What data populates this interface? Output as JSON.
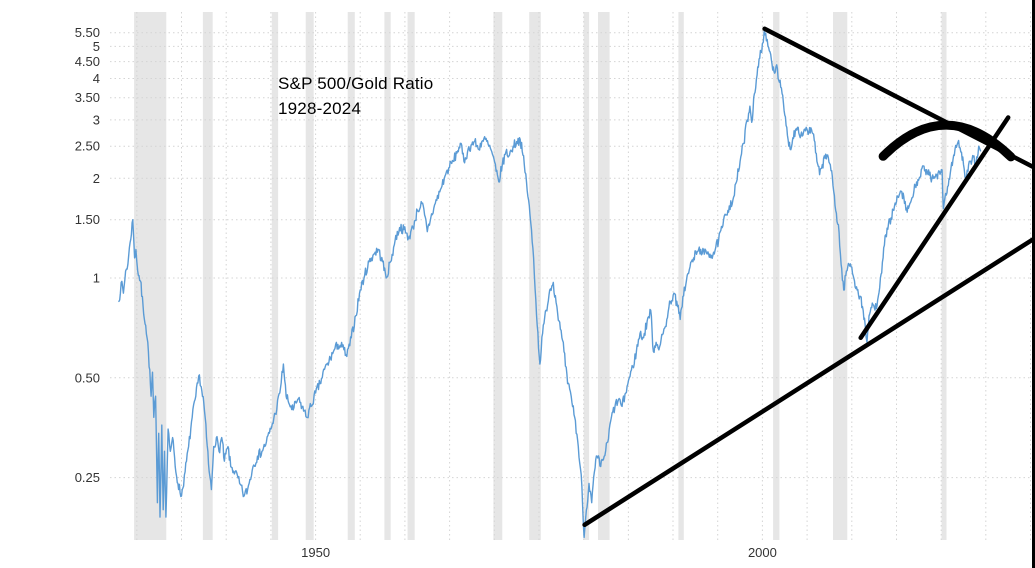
{
  "chart_data": {
    "type": "line",
    "title": "S&P 500/Gold Ratio",
    "subtitle": "1928-2024",
    "xlabel": "",
    "ylabel": "",
    "y_scale": "log",
    "grid": true,
    "legend": "none",
    "x_range": [
      1927,
      2030.5
    ],
    "y_range": [
      0.162,
      6.35
    ],
    "x_ticks": [
      1950,
      2000
    ],
    "x_tick_labels": [
      "1950",
      "2000"
    ],
    "y_ticks": [
      5.5,
      5,
      4.5,
      4,
      3.5,
      3,
      2.5,
      2,
      1.5,
      1,
      0.5,
      0.25
    ],
    "y_tick_labels": [
      "5.50",
      "5",
      "4.50",
      "4",
      "3.50",
      "3",
      "2.50",
      "2",
      "1.50",
      "1",
      "0.50",
      "0.25"
    ],
    "x_grid_start": 1930,
    "x_grid_end": 2030,
    "x_grid_interval": 5,
    "colors": {
      "line": "#5b9bd5",
      "annotation": "#000000",
      "recession_band": "#e3e3e3",
      "grid": "#d4d4d4",
      "tick_label": "#333333"
    },
    "recession_bands": [
      [
        1929.7,
        1933.3
      ],
      [
        1937.4,
        1938.5
      ],
      [
        1945.1,
        1945.8
      ],
      [
        1948.9,
        1949.8
      ],
      [
        1953.6,
        1954.4
      ],
      [
        1957.7,
        1958.4
      ],
      [
        1960.3,
        1961.1
      ],
      [
        1969.9,
        1970.9
      ],
      [
        1973.9,
        1975.2
      ],
      [
        1980.0,
        1980.6
      ],
      [
        1981.6,
        1982.9
      ],
      [
        1990.6,
        1991.2
      ],
      [
        2001.2,
        2001.9
      ],
      [
        2007.9,
        2009.5
      ],
      [
        2020.05,
        2020.6
      ]
    ],
    "series": [
      {
        "name": "S&P 500 / Gold ratio",
        "points": [
          [
            1928.0,
            0.85
          ],
          [
            1928.25,
            0.97
          ],
          [
            1928.5,
            0.9
          ],
          [
            1928.75,
            1.05
          ],
          [
            1929.0,
            1.1
          ],
          [
            1929.25,
            1.28
          ],
          [
            1929.55,
            1.5
          ],
          [
            1929.75,
            1.15
          ],
          [
            1929.9,
            1.22
          ],
          [
            1930.1,
            1.05
          ],
          [
            1930.4,
            0.98
          ],
          [
            1930.7,
            0.82
          ],
          [
            1931.0,
            0.72
          ],
          [
            1931.3,
            0.6
          ],
          [
            1931.6,
            0.44
          ],
          [
            1931.75,
            0.52
          ],
          [
            1931.9,
            0.38
          ],
          [
            1932.1,
            0.44
          ],
          [
            1932.3,
            0.21
          ],
          [
            1932.45,
            0.34
          ],
          [
            1932.6,
            0.19
          ],
          [
            1932.8,
            0.36
          ],
          [
            1932.95,
            0.2
          ],
          [
            1933.1,
            0.3
          ],
          [
            1933.25,
            0.19
          ],
          [
            1933.5,
            0.35
          ],
          [
            1933.75,
            0.3
          ],
          [
            1934.0,
            0.33
          ],
          [
            1934.3,
            0.27
          ],
          [
            1934.6,
            0.24
          ],
          [
            1935.0,
            0.22
          ],
          [
            1935.4,
            0.26
          ],
          [
            1935.8,
            0.31
          ],
          [
            1936.2,
            0.38
          ],
          [
            1936.6,
            0.44
          ],
          [
            1937.0,
            0.51
          ],
          [
            1937.2,
            0.47
          ],
          [
            1937.5,
            0.42
          ],
          [
            1937.8,
            0.33
          ],
          [
            1938.1,
            0.26
          ],
          [
            1938.35,
            0.23
          ],
          [
            1938.6,
            0.31
          ],
          [
            1938.9,
            0.33
          ],
          [
            1939.2,
            0.3
          ],
          [
            1939.5,
            0.33
          ],
          [
            1939.8,
            0.28
          ],
          [
            1940.2,
            0.31
          ],
          [
            1940.5,
            0.27
          ],
          [
            1941.0,
            0.26
          ],
          [
            1941.5,
            0.24
          ],
          [
            1942.0,
            0.22
          ],
          [
            1942.4,
            0.23
          ],
          [
            1943.0,
            0.27
          ],
          [
            1943.5,
            0.29
          ],
          [
            1944.0,
            0.3
          ],
          [
            1944.5,
            0.32
          ],
          [
            1945.0,
            0.35
          ],
          [
            1945.5,
            0.39
          ],
          [
            1946.0,
            0.45
          ],
          [
            1946.4,
            0.55
          ],
          [
            1946.7,
            0.44
          ],
          [
            1947.0,
            0.42
          ],
          [
            1947.5,
            0.4
          ],
          [
            1948.0,
            0.43
          ],
          [
            1948.5,
            0.41
          ],
          [
            1949.0,
            0.38
          ],
          [
            1949.5,
            0.41
          ],
          [
            1950.0,
            0.45
          ],
          [
            1950.5,
            0.48
          ],
          [
            1951.0,
            0.53
          ],
          [
            1951.5,
            0.56
          ],
          [
            1952.0,
            0.6
          ],
          [
            1952.5,
            0.63
          ],
          [
            1953.0,
            0.62
          ],
          [
            1953.5,
            0.58
          ],
          [
            1954.0,
            0.66
          ],
          [
            1954.5,
            0.77
          ],
          [
            1955.0,
            0.92
          ],
          [
            1955.5,
            1.02
          ],
          [
            1956.0,
            1.12
          ],
          [
            1956.5,
            1.18
          ],
          [
            1957.0,
            1.22
          ],
          [
            1957.5,
            1.12
          ],
          [
            1957.9,
            1.0
          ],
          [
            1958.4,
            1.12
          ],
          [
            1958.9,
            1.3
          ],
          [
            1959.4,
            1.42
          ],
          [
            1959.9,
            1.4
          ],
          [
            1960.4,
            1.32
          ],
          [
            1960.9,
            1.42
          ],
          [
            1961.4,
            1.6
          ],
          [
            1961.9,
            1.68
          ],
          [
            1962.2,
            1.55
          ],
          [
            1962.5,
            1.38
          ],
          [
            1962.9,
            1.52
          ],
          [
            1963.4,
            1.68
          ],
          [
            1963.9,
            1.82
          ],
          [
            1964.4,
            2.0
          ],
          [
            1964.9,
            2.15
          ],
          [
            1965.4,
            2.25
          ],
          [
            1965.9,
            2.42
          ],
          [
            1966.2,
            2.55
          ],
          [
            1966.6,
            2.25
          ],
          [
            1967.0,
            2.4
          ],
          [
            1967.4,
            2.52
          ],
          [
            1967.8,
            2.58
          ],
          [
            1968.2,
            2.45
          ],
          [
            1968.6,
            2.58
          ],
          [
            1969.0,
            2.62
          ],
          [
            1969.4,
            2.5
          ],
          [
            1969.8,
            2.36
          ],
          [
            1970.2,
            2.1
          ],
          [
            1970.5,
            1.95
          ],
          [
            1970.9,
            2.2
          ],
          [
            1971.3,
            2.4
          ],
          [
            1971.7,
            2.35
          ],
          [
            1972.1,
            2.5
          ],
          [
            1972.5,
            2.58
          ],
          [
            1972.9,
            2.62
          ],
          [
            1973.2,
            2.35
          ],
          [
            1973.6,
            1.95
          ],
          [
            1974.0,
            1.55
          ],
          [
            1974.4,
            1.15
          ],
          [
            1974.8,
            0.72
          ],
          [
            1975.1,
            0.55
          ],
          [
            1975.4,
            0.68
          ],
          [
            1975.8,
            0.8
          ],
          [
            1976.2,
            0.92
          ],
          [
            1976.6,
            0.97
          ],
          [
            1977.0,
            0.82
          ],
          [
            1977.4,
            0.7
          ],
          [
            1977.8,
            0.6
          ],
          [
            1978.2,
            0.48
          ],
          [
            1978.6,
            0.44
          ],
          [
            1979.0,
            0.38
          ],
          [
            1979.4,
            0.31
          ],
          [
            1979.8,
            0.235
          ],
          [
            1980.05,
            0.165
          ],
          [
            1980.3,
            0.2
          ],
          [
            1980.6,
            0.24
          ],
          [
            1980.9,
            0.21
          ],
          [
            1981.2,
            0.26
          ],
          [
            1981.5,
            0.29
          ],
          [
            1981.9,
            0.27
          ],
          [
            1982.3,
            0.29
          ],
          [
            1982.7,
            0.32
          ],
          [
            1983.1,
            0.38
          ],
          [
            1983.5,
            0.41
          ],
          [
            1983.9,
            0.43
          ],
          [
            1984.3,
            0.41
          ],
          [
            1984.7,
            0.45
          ],
          [
            1985.1,
            0.5
          ],
          [
            1985.5,
            0.54
          ],
          [
            1985.9,
            0.6
          ],
          [
            1986.3,
            0.68
          ],
          [
            1986.7,
            0.66
          ],
          [
            1987.1,
            0.74
          ],
          [
            1987.5,
            0.8
          ],
          [
            1987.8,
            0.6
          ],
          [
            1988.1,
            0.64
          ],
          [
            1988.5,
            0.62
          ],
          [
            1988.9,
            0.68
          ],
          [
            1989.3,
            0.75
          ],
          [
            1989.7,
            0.85
          ],
          [
            1990.1,
            0.9
          ],
          [
            1990.5,
            0.82
          ],
          [
            1990.8,
            0.75
          ],
          [
            1991.1,
            0.88
          ],
          [
            1991.5,
            0.98
          ],
          [
            1991.9,
            1.08
          ],
          [
            1992.3,
            1.15
          ],
          [
            1992.7,
            1.2
          ],
          [
            1993.1,
            1.22
          ],
          [
            1993.5,
            1.18
          ],
          [
            1993.9,
            1.2
          ],
          [
            1994.3,
            1.17
          ],
          [
            1994.7,
            1.21
          ],
          [
            1995.1,
            1.3
          ],
          [
            1995.5,
            1.42
          ],
          [
            1995.9,
            1.55
          ],
          [
            1996.3,
            1.65
          ],
          [
            1996.7,
            1.72
          ],
          [
            1997.1,
            1.95
          ],
          [
            1997.5,
            2.25
          ],
          [
            1997.9,
            2.55
          ],
          [
            1998.3,
            3.0
          ],
          [
            1998.6,
            3.3
          ],
          [
            1998.8,
            2.95
          ],
          [
            1999.1,
            3.6
          ],
          [
            1999.4,
            4.1
          ],
          [
            1999.7,
            4.6
          ],
          [
            2000.0,
            5.1
          ],
          [
            2000.2,
            5.55
          ],
          [
            2000.45,
            5.2
          ],
          [
            2000.7,
            4.95
          ],
          [
            2001.0,
            4.55
          ],
          [
            2001.3,
            4.2
          ],
          [
            2001.6,
            4.4
          ],
          [
            2001.9,
            3.9
          ],
          [
            2002.2,
            3.6
          ],
          [
            2002.5,
            3.1
          ],
          [
            2002.8,
            2.7
          ],
          [
            2003.1,
            2.45
          ],
          [
            2003.4,
            2.65
          ],
          [
            2003.7,
            2.8
          ],
          [
            2004.0,
            2.85
          ],
          [
            2004.3,
            2.7
          ],
          [
            2004.6,
            2.75
          ],
          [
            2004.9,
            2.85
          ],
          [
            2005.2,
            2.75
          ],
          [
            2005.5,
            2.8
          ],
          [
            2005.8,
            2.6
          ],
          [
            2006.1,
            2.25
          ],
          [
            2006.4,
            2.05
          ],
          [
            2006.7,
            2.2
          ],
          [
            2007.0,
            2.3
          ],
          [
            2007.3,
            2.35
          ],
          [
            2007.6,
            2.2
          ],
          [
            2007.9,
            1.9
          ],
          [
            2008.2,
            1.6
          ],
          [
            2008.5,
            1.45
          ],
          [
            2008.8,
            1.1
          ],
          [
            2009.1,
            0.92
          ],
          [
            2009.4,
            1.05
          ],
          [
            2009.7,
            1.1
          ],
          [
            2010.0,
            1.08
          ],
          [
            2010.3,
            0.98
          ],
          [
            2010.6,
            0.92
          ],
          [
            2010.9,
            0.88
          ],
          [
            2011.2,
            0.82
          ],
          [
            2011.5,
            0.72
          ],
          [
            2011.7,
            0.64
          ],
          [
            2012.0,
            0.78
          ],
          [
            2012.3,
            0.84
          ],
          [
            2012.6,
            0.8
          ],
          [
            2012.9,
            0.86
          ],
          [
            2013.2,
            1.0
          ],
          [
            2013.5,
            1.15
          ],
          [
            2013.8,
            1.35
          ],
          [
            2014.1,
            1.45
          ],
          [
            2014.4,
            1.52
          ],
          [
            2014.7,
            1.6
          ],
          [
            2015.0,
            1.7
          ],
          [
            2015.3,
            1.78
          ],
          [
            2015.6,
            1.82
          ],
          [
            2015.9,
            1.68
          ],
          [
            2016.2,
            1.58
          ],
          [
            2016.5,
            1.68
          ],
          [
            2016.8,
            1.75
          ],
          [
            2017.1,
            1.9
          ],
          [
            2017.4,
            1.98
          ],
          [
            2017.7,
            2.02
          ],
          [
            2018.0,
            2.18
          ],
          [
            2018.3,
            2.05
          ],
          [
            2018.6,
            2.12
          ],
          [
            2018.9,
            1.95
          ],
          [
            2019.2,
            2.02
          ],
          [
            2019.5,
            2.05
          ],
          [
            2019.8,
            2.1
          ],
          [
            2020.1,
            2.12
          ],
          [
            2020.25,
            1.62
          ],
          [
            2020.5,
            1.8
          ],
          [
            2020.8,
            1.9
          ],
          [
            2021.1,
            2.15
          ],
          [
            2021.4,
            2.35
          ],
          [
            2021.7,
            2.48
          ],
          [
            2021.95,
            2.6
          ],
          [
            2022.2,
            2.4
          ],
          [
            2022.5,
            2.2
          ],
          [
            2022.75,
            1.98
          ],
          [
            2023.0,
            2.1
          ],
          [
            2023.3,
            2.25
          ],
          [
            2023.6,
            2.32
          ],
          [
            2023.9,
            2.2
          ],
          [
            2024.2,
            2.5
          ],
          [
            2024.4,
            2.42
          ]
        ]
      }
    ],
    "annotations": {
      "trendlines": [
        {
          "name": "descending-resistance-line",
          "x1": 2000.25,
          "y1": 5.65,
          "x2": 2030.5,
          "y2": 2.15
        },
        {
          "name": "ascending-support-line",
          "x1": 1980.1,
          "y1": 0.18,
          "x2": 2030.5,
          "y2": 1.32
        },
        {
          "name": "steep-ascending-line",
          "x1": 2011.0,
          "y1": 0.66,
          "x2": 2027.5,
          "y2": 3.05
        }
      ],
      "arc": {
        "name": "rounding-top-arc",
        "x1": 2013.5,
        "y1": 2.33,
        "cx": 2020.5,
        "cy": 3.6,
        "x2": 2027.8,
        "y2": 2.32
      }
    }
  }
}
